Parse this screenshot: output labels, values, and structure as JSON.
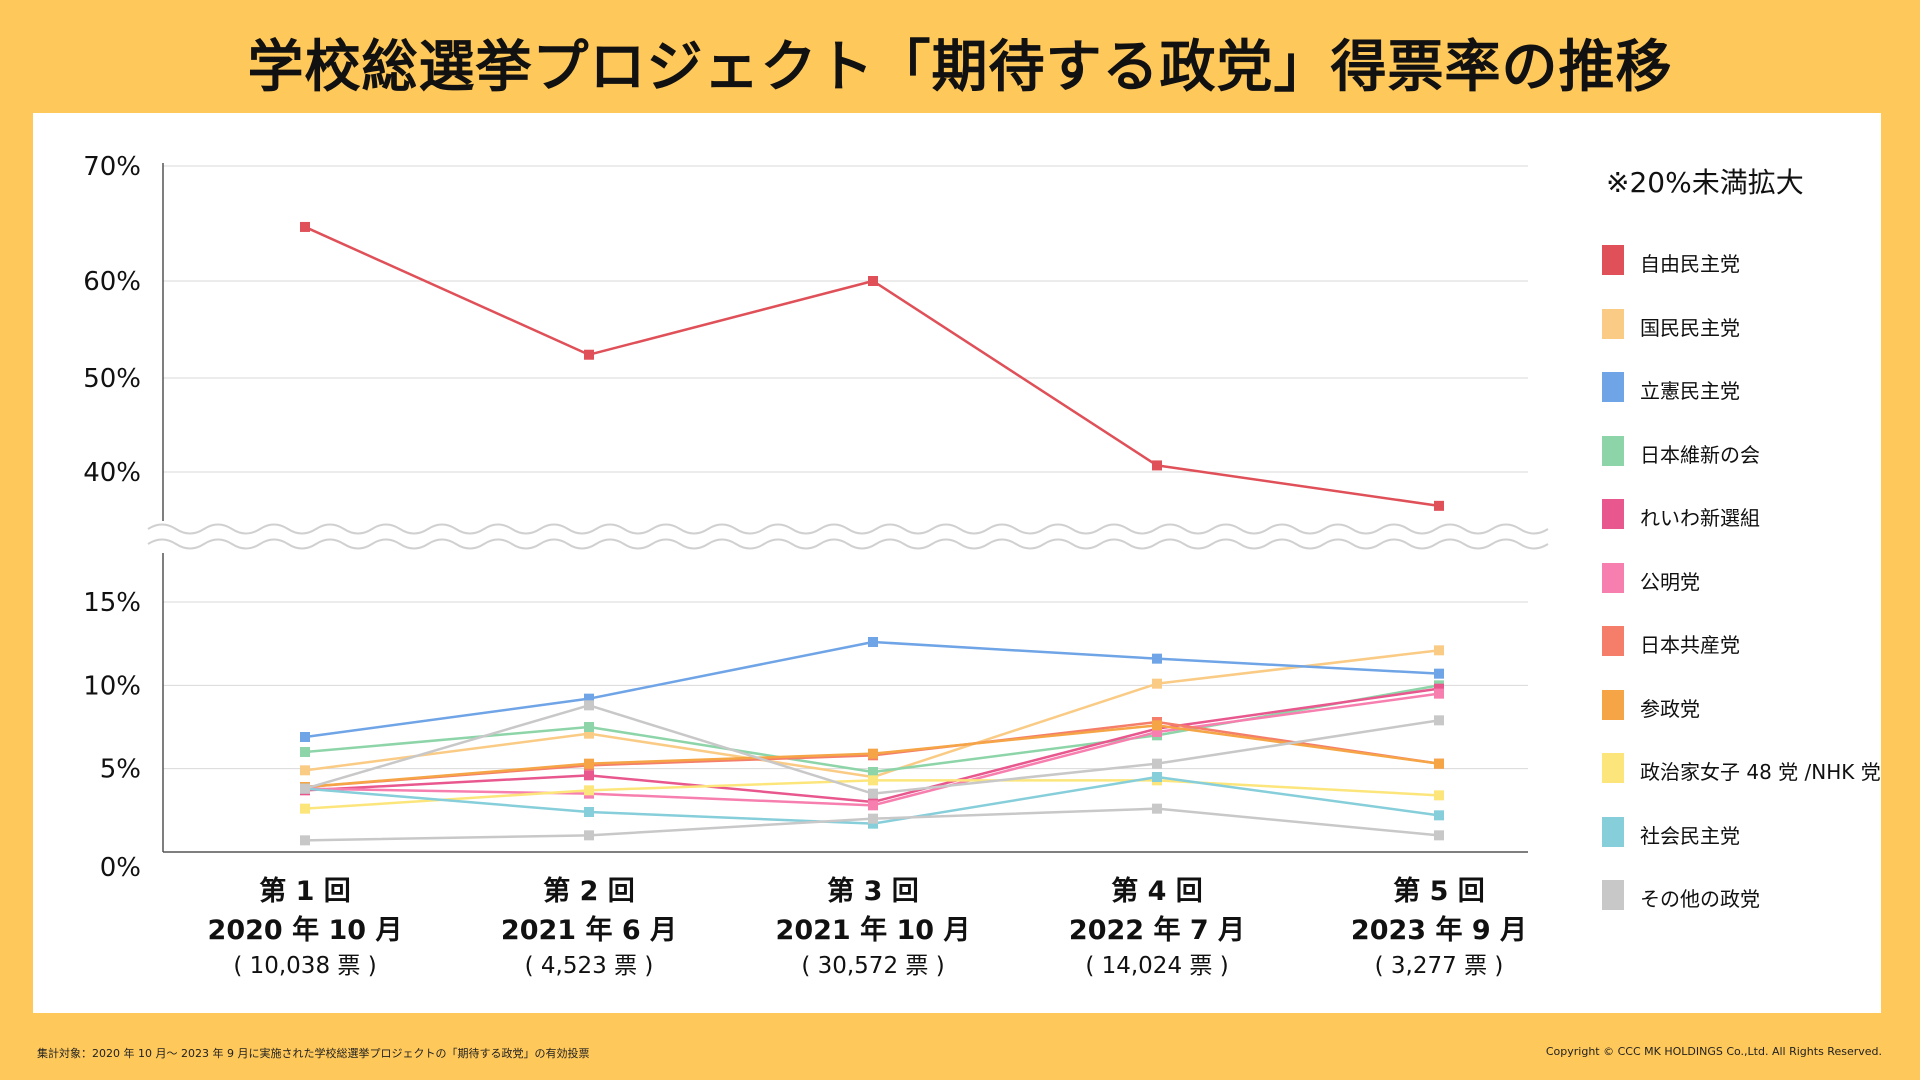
{
  "title": "学校総選挙プロジェクト「期待する政党」得票率の推移",
  "legend_note": "※20%未満拡大",
  "footer": {
    "source": "集計対象：2020 年 10 月〜 2023 年 9 月に実施された学校総選挙プロジェクトの「期待する政党」の有効投票",
    "copyright": "Copyright © CCC MK HOLDINGS Co.,Ltd. All Rights Reserved."
  },
  "chart_data": {
    "type": "line",
    "axis_break": true,
    "grid": true,
    "legend_position": "right",
    "y_ticks_upper": [
      "70%",
      "60%",
      "50%",
      "40%"
    ],
    "y_ticks_lower": [
      "15%",
      "10%",
      "5%",
      "0%"
    ],
    "categories": [
      {
        "line1": "第 1 回",
        "line2": "2020 年 10 月",
        "line3": "( 10,038 票 )"
      },
      {
        "line1": "第 2 回",
        "line2": "2021 年 6 月",
        "line3": "( 4,523 票 )"
      },
      {
        "line1": "第 3 回",
        "line2": "2021 年 10 月",
        "line3": "( 30,572 票 )"
      },
      {
        "line1": "第 4 回",
        "line2": "2022 年 7 月",
        "line3": "( 14,024 票 )"
      },
      {
        "line1": "第 5 回",
        "line2": "2023 年 9 月",
        "line3": "( 3,277 票 )"
      }
    ],
    "series": [
      {
        "name": "自由民主党",
        "color": "#E05058",
        "values": [
          64.7,
          52.4,
          60.0,
          40.7,
          36.4
        ]
      },
      {
        "name": "国民民主党",
        "color": "#FACB85",
        "values": [
          4.9,
          7.1,
          4.5,
          10.1,
          12.1
        ]
      },
      {
        "name": "立憲民主党",
        "color": "#6FA4E6",
        "values": [
          6.9,
          9.2,
          12.6,
          11.6,
          10.7
        ]
      },
      {
        "name": "日本維新の会",
        "color": "#8DD5A8",
        "values": [
          6.0,
          7.5,
          4.8,
          7.0,
          10.0
        ]
      },
      {
        "name": "れいわ新選組",
        "color": "#E8588E",
        "values": [
          3.7,
          4.6,
          3.0,
          7.4,
          9.8
        ]
      },
      {
        "name": "公明党",
        "color": "#F77FAF",
        "values": [
          3.8,
          3.5,
          2.8,
          7.2,
          9.5
        ]
      },
      {
        "name": "日本共産党",
        "color": "#F47E6A",
        "values": [
          3.9,
          5.2,
          5.8,
          7.8,
          5.3
        ]
      },
      {
        "name": "参政党",
        "color": "#F5A546",
        "values": [
          3.9,
          5.3,
          5.9,
          7.6,
          5.3
        ]
      },
      {
        "name": "政治家女子 48 党 /NHK 党",
        "color": "#FCE67C",
        "values": [
          2.6,
          3.7,
          4.3,
          4.3,
          3.4
        ]
      },
      {
        "name": "社会民主党",
        "color": "#86CEDA",
        "values": [
          3.8,
          2.4,
          1.7,
          4.5,
          2.2
        ]
      },
      {
        "name": "その他の政党",
        "color": "#C8C8C8",
        "values": [
          0.7,
          1.0,
          2.0,
          2.6,
          1.0
        ]
      },
      {
        "name": "その他の政党",
        "color": "#C8C8C8",
        "values": [
          3.8,
          8.8,
          3.5,
          5.3,
          7.9
        ],
        "legend": false
      }
    ]
  }
}
